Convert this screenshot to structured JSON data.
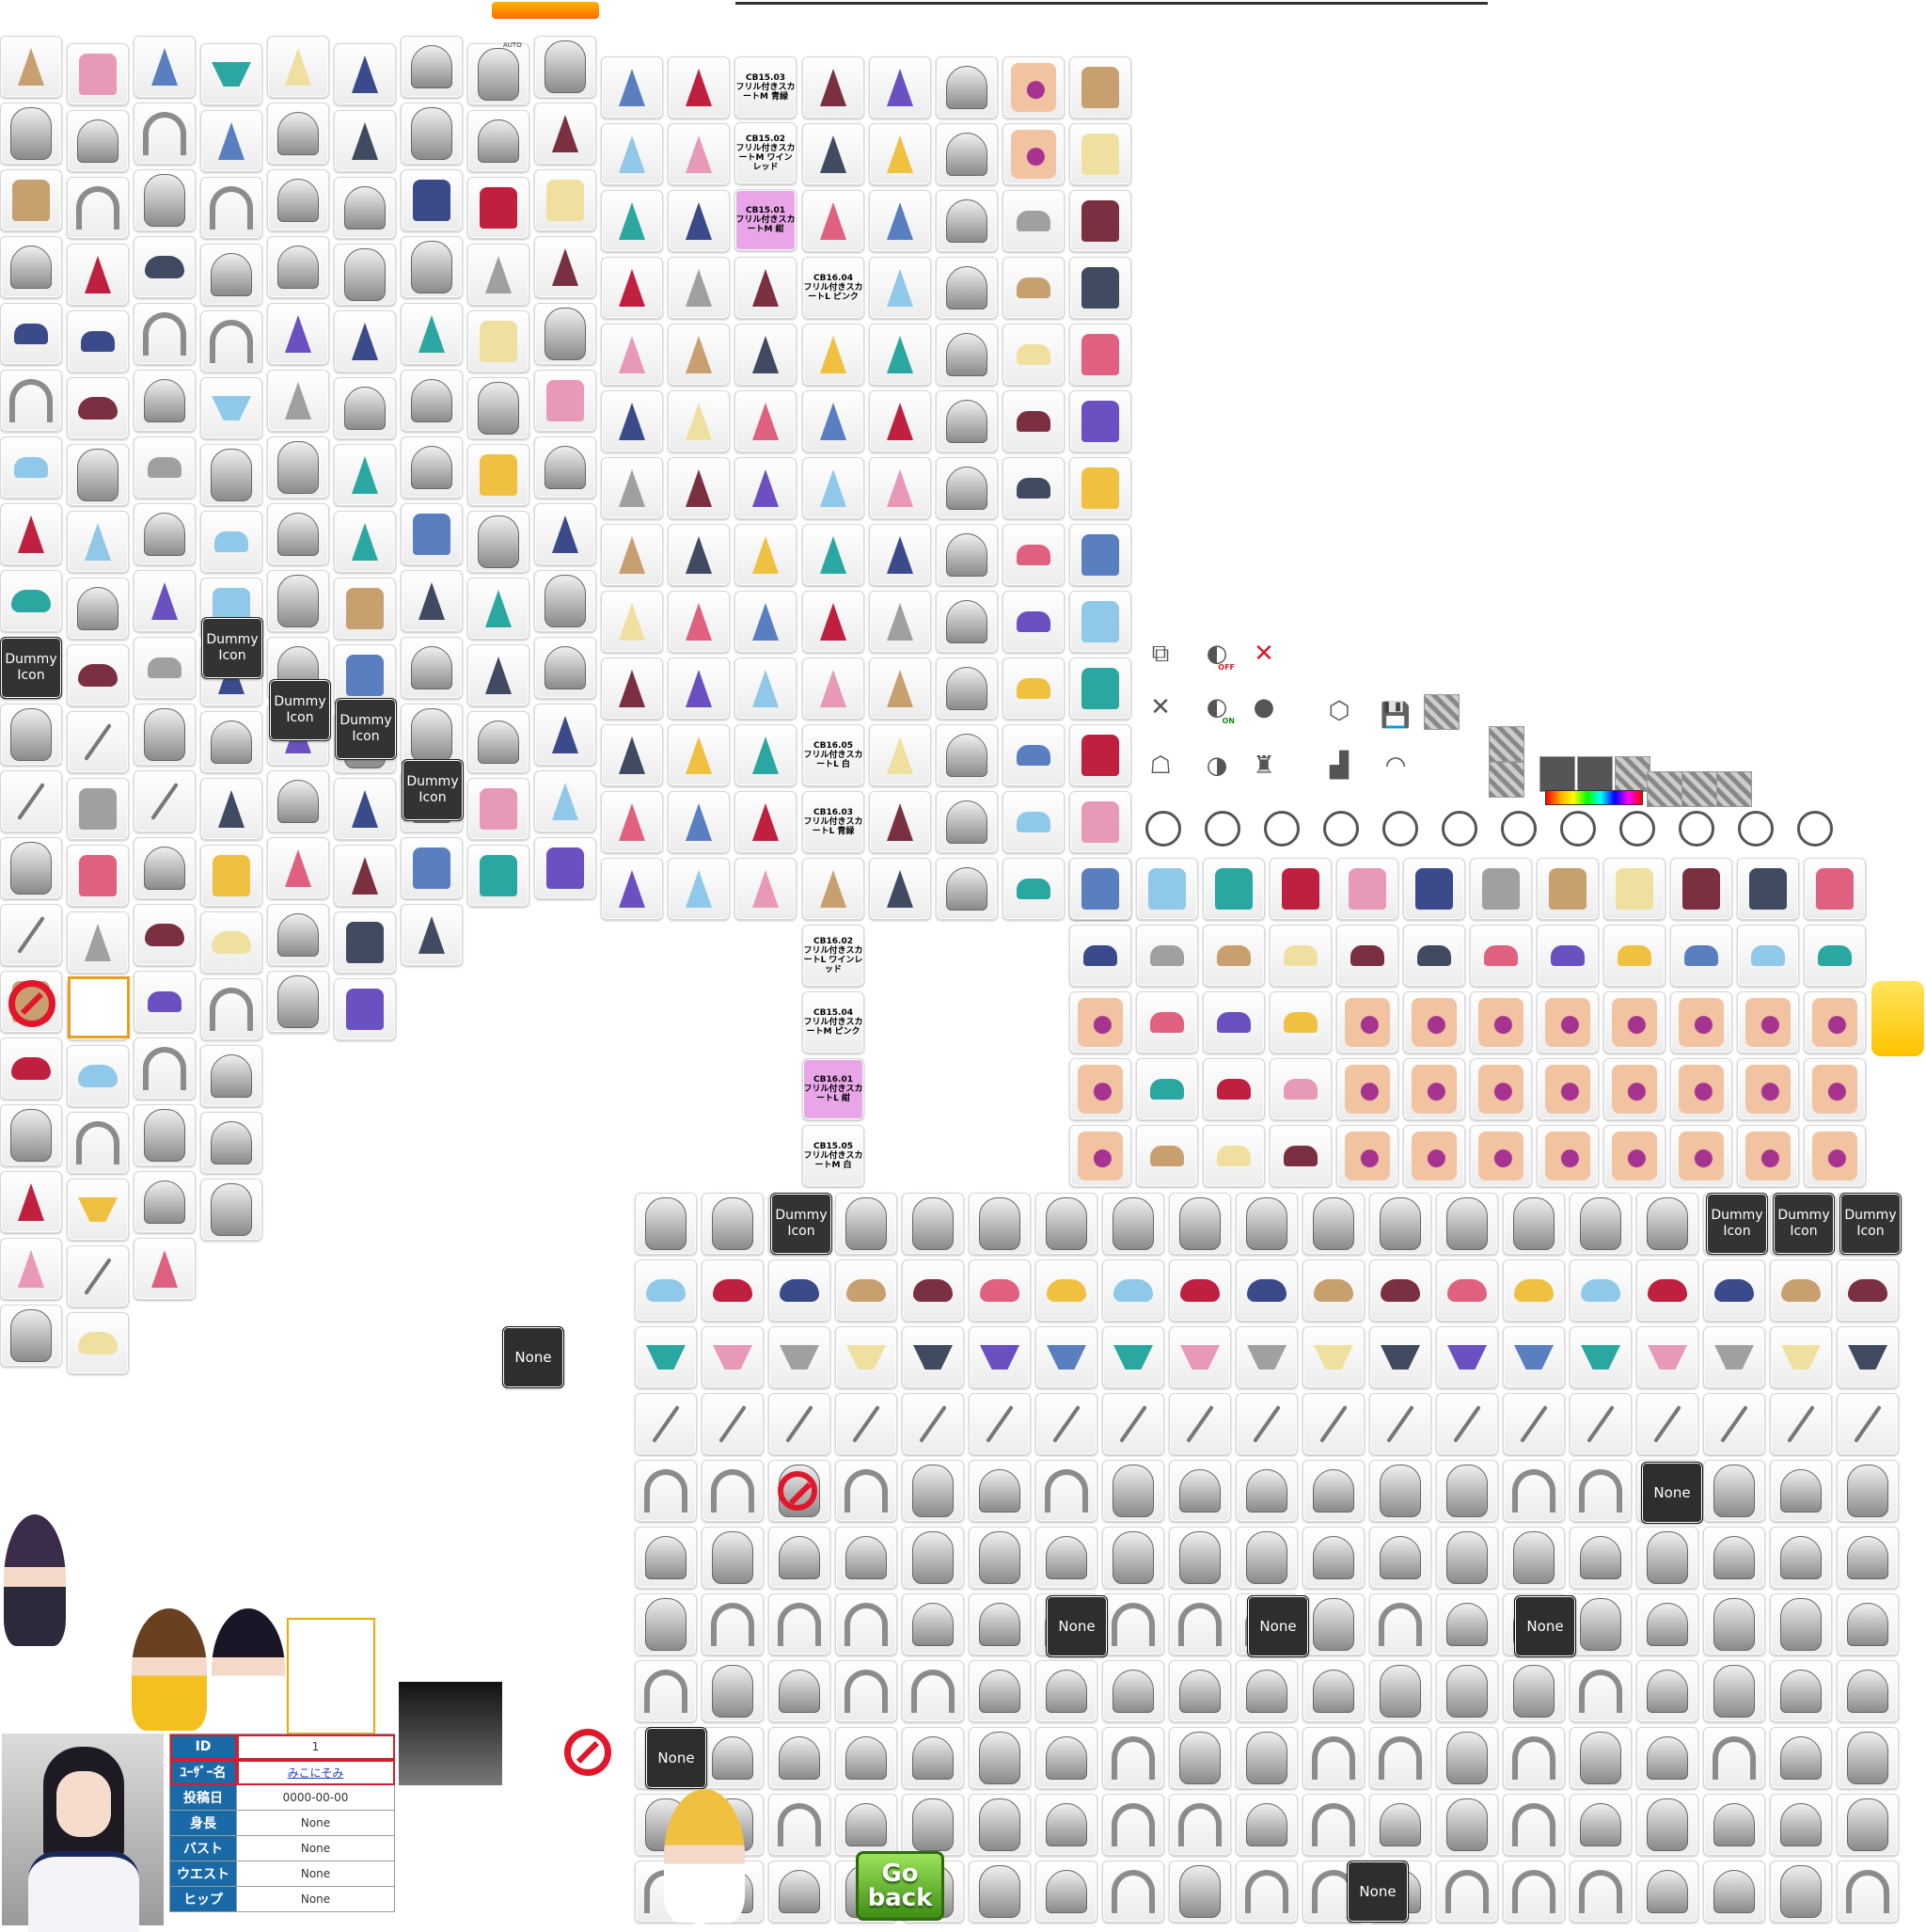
{
  "labels": {
    "dummy_icon": "Dummy Icon",
    "none": "None",
    "auto": "AUTO",
    "go_back": "Go back"
  },
  "item_codes": [
    {
      "code": "CB15.03",
      "name": "フリル付きスカートM 青緑"
    },
    {
      "code": "CB15.02",
      "name": "フリル付きスカートM ワインレッド"
    },
    {
      "code": "CB15.01",
      "name": "フリル付きスカートM 紺"
    },
    {
      "code": "CB16.04",
      "name": "フリル付きスカートL ピンク"
    },
    {
      "code": "CB16.05",
      "name": "フリル付きスカートL 白"
    },
    {
      "code": "CB16.03",
      "name": "フリル付きスカートL 青緑"
    },
    {
      "code": "CB16.02",
      "name": "フリル付きスカートL ワインレッド"
    },
    {
      "code": "CB15.04",
      "name": "フリル付きスカートM ピンク"
    },
    {
      "code": "CB16.01",
      "name": "フリル付きスカートL 紺"
    },
    {
      "code": "CB15.05",
      "name": "フリル付きスカートM 白"
    }
  ],
  "toggles": {
    "off": "OFF",
    "on": "ON"
  },
  "profile": {
    "rows": [
      {
        "label": "ID",
        "value": "1"
      },
      {
        "label": "ﾕｰｻﾞｰ名",
        "value": "みこにそみ"
      },
      {
        "label": "投稿日",
        "value": "0000-00-00"
      },
      {
        "label": "身長",
        "value": "None"
      },
      {
        "label": "バスト",
        "value": "None"
      },
      {
        "label": "ウエスト",
        "value": "None"
      },
      {
        "label": "ヒップ",
        "value": "None"
      }
    ]
  },
  "colors": {
    "accent_orange": "#ff8a00",
    "table_header": "#1a6aa8",
    "highlight_red": "#d21f2f",
    "go_back_green": "#4fa81f",
    "eye_purple": "#a6338f"
  }
}
